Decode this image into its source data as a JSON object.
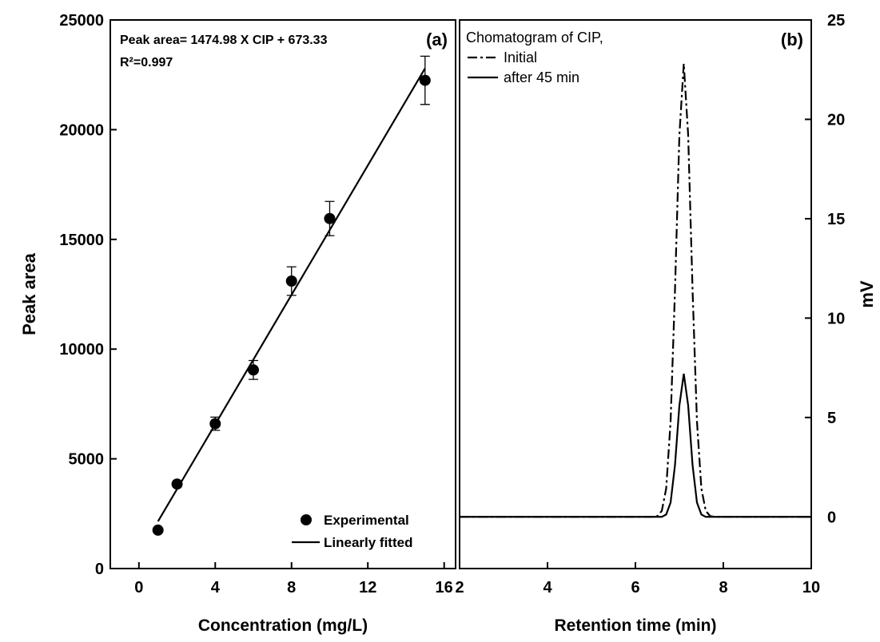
{
  "chart_data": [
    {
      "type": "scatter",
      "panel_label": "(a)",
      "xlabel": "Concentration (mg/L)",
      "ylabel": "Peak area",
      "annotations": [
        "Peak area= 1474.98 X CIP + 673.33",
        "R²=0.997"
      ],
      "xlim": [
        -1.5,
        16.6
      ],
      "ylim": [
        0,
        25000
      ],
      "xticks": [
        0,
        4,
        8,
        12,
        16
      ],
      "yticks": [
        0,
        5000,
        10000,
        15000,
        20000,
        25000
      ],
      "legend": "lower right",
      "series": [
        {
          "name": "Experimental",
          "mode": "markers",
          "color": "#000000",
          "x": [
            1,
            2,
            4,
            6,
            8,
            10,
            15
          ],
          "values": [
            1750,
            3850,
            6600,
            9050,
            13100,
            15950,
            22250
          ],
          "errors": [
            80,
            100,
            300,
            430,
            650,
            780,
            1100
          ]
        },
        {
          "name": "Linearly fitted",
          "mode": "lines",
          "color": "#000000",
          "x": [
            1,
            15
          ],
          "values": [
            2148,
            22798
          ]
        }
      ]
    },
    {
      "type": "line",
      "panel_label": "(b)",
      "xlabel": "Retention time (min)",
      "ylabel": "mV",
      "legend_title": "Chomatogram of CIP,",
      "legend": "upper left",
      "xlim": [
        2,
        10
      ],
      "ylim": [
        -2.6,
        25
      ],
      "xticks": [
        2,
        4,
        6,
        8,
        10
      ],
      "yticks": [
        0,
        5,
        10,
        15,
        20,
        25
      ],
      "x": [
        2,
        6,
        6.4,
        6.5,
        6.6,
        6.7,
        6.8,
        6.9,
        7.0,
        7.1,
        7.2,
        7.3,
        7.4,
        7.5,
        7.6,
        7.7,
        7.8,
        8,
        10
      ],
      "series": [
        {
          "name": "Initial",
          "dash": "dashdot",
          "color": "#000000",
          "values": [
            0,
            0,
            0,
            0.04,
            0.3,
            1.43,
            4.8,
            11.4,
            19.2,
            22.8,
            19.2,
            11.4,
            4.8,
            1.43,
            0.3,
            0.04,
            0,
            0,
            0
          ]
        },
        {
          "name": "after 45 min",
          "dash": "solid",
          "color": "#000000",
          "values": [
            0,
            0,
            0,
            0,
            0,
            0.12,
            0.72,
            2.6,
            5.6,
            7.2,
            5.6,
            2.6,
            0.72,
            0.12,
            0,
            0,
            0,
            0,
            0
          ]
        }
      ]
    }
  ]
}
